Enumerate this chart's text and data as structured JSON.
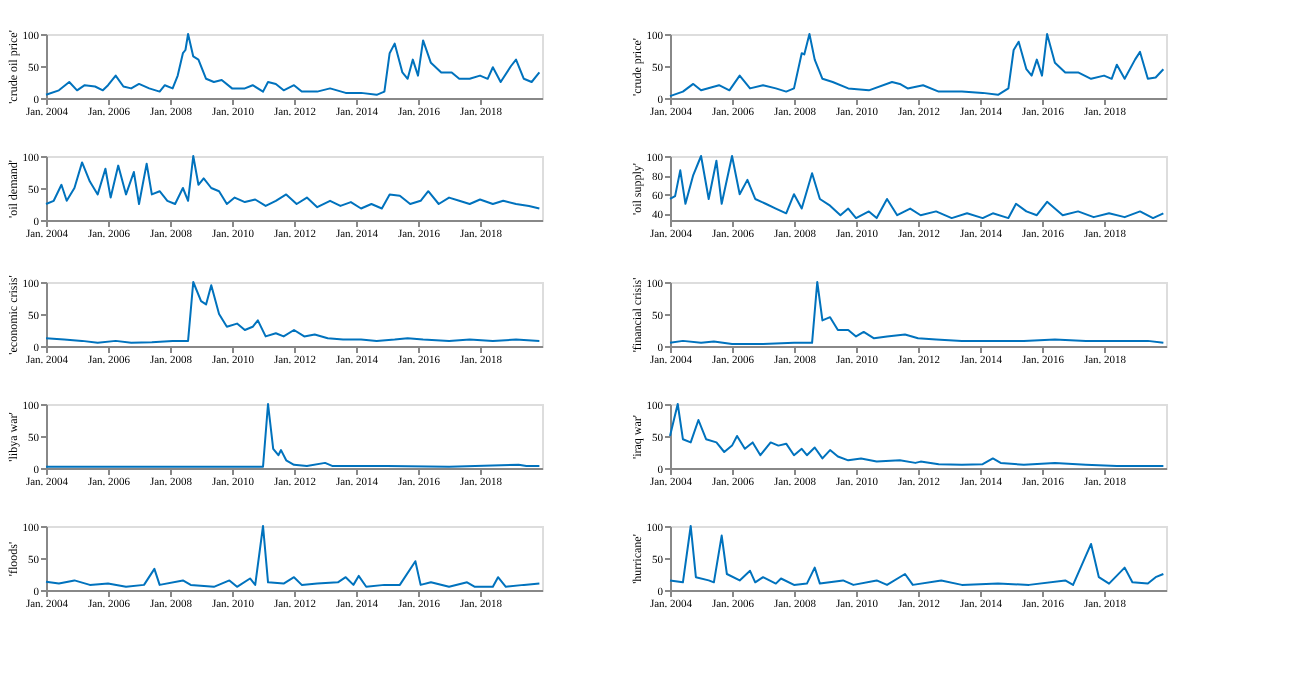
{
  "chart_data": [
    {
      "type": "line",
      "ylabel": "'crude oil price'",
      "color": "#0072bd",
      "grid": false,
      "xlim": [
        "2004-01",
        "2020-01"
      ],
      "ylim": [
        0,
        100
      ],
      "yticks": [
        0,
        50,
        100
      ],
      "xticks": [
        {
          "value": "2004-01",
          "label": "Jan. 2004"
        },
        {
          "value": "2006-01",
          "label": "Jan. 2006"
        },
        {
          "value": "2008-01",
          "label": "Jan. 2008"
        },
        {
          "value": "2010-01",
          "label": "Jan. 2010"
        },
        {
          "value": "2012-01",
          "label": "Jan. 2012"
        },
        {
          "value": "2014-01",
          "label": "Jan. 2014"
        },
        {
          "value": "2016-01",
          "label": "Jan. 2016"
        },
        {
          "value": "2018-01",
          "label": "Jan. 2018"
        }
      ],
      "x": [
        "2004-01",
        "2004-06",
        "2004-10",
        "2005-01",
        "2005-04",
        "2005-08",
        "2005-11",
        "2006-01",
        "2006-04",
        "2006-07",
        "2006-10",
        "2007-01",
        "2007-05",
        "2007-09",
        "2007-11",
        "2008-02",
        "2008-04",
        "2008-06",
        "2008-07",
        "2008-08",
        "2008-10",
        "2008-12",
        "2009-03",
        "2009-06",
        "2009-09",
        "2010-01",
        "2010-06",
        "2010-09",
        "2011-01",
        "2011-03",
        "2011-06",
        "2011-09",
        "2012-01",
        "2012-04",
        "2012-10",
        "2013-03",
        "2013-09",
        "2014-03",
        "2014-09",
        "2014-12",
        "2015-02",
        "2015-04",
        "2015-07",
        "2015-09",
        "2015-11",
        "2016-01",
        "2016-03",
        "2016-06",
        "2016-10",
        "2017-02",
        "2017-05",
        "2017-09",
        "2018-01",
        "2018-04",
        "2018-06",
        "2018-09",
        "2019-01",
        "2019-03",
        "2019-06",
        "2019-09",
        "2019-12"
      ],
      "values": [
        5,
        12,
        25,
        12,
        20,
        18,
        12,
        20,
        35,
        18,
        15,
        22,
        15,
        10,
        20,
        15,
        35,
        70,
        75,
        100,
        65,
        60,
        30,
        25,
        28,
        15,
        15,
        20,
        10,
        25,
        22,
        12,
        20,
        10,
        10,
        15,
        8,
        8,
        5,
        10,
        70,
        85,
        40,
        30,
        60,
        35,
        90,
        55,
        40,
        40,
        30,
        30,
        35,
        30,
        48,
        25,
        50,
        60,
        30,
        25,
        40
      ]
    },
    {
      "type": "line",
      "ylabel": "'crude price'",
      "color": "#0072bd",
      "grid": false,
      "xlim": [
        "2004-01",
        "2020-01"
      ],
      "ylim": [
        0,
        100
      ],
      "yticks": [
        0,
        50,
        100
      ],
      "xticks": [
        {
          "value": "2004-01",
          "label": "Jan. 2004"
        },
        {
          "value": "2006-01",
          "label": "Jan. 2006"
        },
        {
          "value": "2008-01",
          "label": "Jan. 2008"
        },
        {
          "value": "2010-01",
          "label": "Jan. 2010"
        },
        {
          "value": "2012-01",
          "label": "Jan. 2012"
        },
        {
          "value": "2014-01",
          "label": "Jan. 2014"
        },
        {
          "value": "2016-01",
          "label": "Jan. 2016"
        },
        {
          "value": "2018-01",
          "label": "Jan. 2018"
        }
      ],
      "x": [
        "2004-01",
        "2004-06",
        "2004-10",
        "2005-01",
        "2005-08",
        "2005-12",
        "2006-04",
        "2006-08",
        "2007-01",
        "2007-06",
        "2007-10",
        "2008-01",
        "2008-04",
        "2008-05",
        "2008-07",
        "2008-09",
        "2008-12",
        "2009-04",
        "2009-10",
        "2010-06",
        "2011-03",
        "2011-06",
        "2011-09",
        "2012-03",
        "2012-09",
        "2013-06",
        "2014-02",
        "2014-08",
        "2014-12",
        "2015-02",
        "2015-04",
        "2015-07",
        "2015-09",
        "2015-11",
        "2016-01",
        "2016-03",
        "2016-06",
        "2016-10",
        "2017-03",
        "2017-08",
        "2018-01",
        "2018-04",
        "2018-06",
        "2018-09",
        "2019-01",
        "2019-03",
        "2019-06",
        "2019-09",
        "2019-12"
      ],
      "values": [
        3,
        10,
        22,
        12,
        20,
        12,
        35,
        15,
        20,
        15,
        10,
        15,
        70,
        68,
        100,
        60,
        30,
        25,
        15,
        12,
        25,
        22,
        15,
        20,
        10,
        10,
        8,
        5,
        15,
        75,
        88,
        45,
        35,
        60,
        35,
        100,
        55,
        40,
        40,
        30,
        35,
        30,
        52,
        30,
        60,
        72,
        30,
        32,
        45
      ]
    },
    {
      "type": "line",
      "ylabel": "'oil demand'",
      "color": "#0072bd",
      "grid": false,
      "xlim": [
        "2004-01",
        "2020-01"
      ],
      "ylim": [
        0,
        100
      ],
      "yticks": [
        0,
        50,
        100
      ],
      "xticks": [
        {
          "value": "2004-01",
          "label": "Jan. 2004"
        },
        {
          "value": "2006-01",
          "label": "Jan. 2006"
        },
        {
          "value": "2008-01",
          "label": "Jan. 2008"
        },
        {
          "value": "2010-01",
          "label": "Jan. 2010"
        },
        {
          "value": "2012-01",
          "label": "Jan. 2012"
        },
        {
          "value": "2014-01",
          "label": "Jan. 2014"
        },
        {
          "value": "2016-01",
          "label": "Jan. 2016"
        },
        {
          "value": "2018-01",
          "label": "Jan. 2018"
        }
      ],
      "x": [
        "2004-01",
        "2004-04",
        "2004-07",
        "2004-09",
        "2004-12",
        "2005-03",
        "2005-06",
        "2005-09",
        "2005-12",
        "2006-02",
        "2006-05",
        "2006-08",
        "2006-11",
        "2007-01",
        "2007-04",
        "2007-06",
        "2007-09",
        "2007-12",
        "2008-03",
        "2008-06",
        "2008-08",
        "2008-10",
        "2008-12",
        "2009-02",
        "2009-05",
        "2009-08",
        "2009-11",
        "2010-02",
        "2010-06",
        "2010-10",
        "2011-02",
        "2011-06",
        "2011-10",
        "2012-02",
        "2012-06",
        "2012-10",
        "2013-03",
        "2013-07",
        "2013-11",
        "2014-03",
        "2014-07",
        "2014-11",
        "2015-02",
        "2015-06",
        "2015-10",
        "2016-02",
        "2016-05",
        "2016-09",
        "2017-01",
        "2017-05",
        "2017-09",
        "2018-01",
        "2018-06",
        "2018-10",
        "2019-03",
        "2019-08",
        "2019-12"
      ],
      "values": [
        25,
        30,
        55,
        30,
        50,
        90,
        60,
        40,
        80,
        35,
        85,
        40,
        75,
        25,
        88,
        40,
        45,
        30,
        25,
        50,
        30,
        100,
        55,
        65,
        50,
        45,
        25,
        35,
        28,
        32,
        22,
        30,
        40,
        25,
        35,
        20,
        30,
        22,
        28,
        18,
        25,
        18,
        40,
        38,
        25,
        30,
        45,
        25,
        35,
        30,
        25,
        32,
        25,
        30,
        25,
        22,
        18
      ]
    },
    {
      "type": "line",
      "ylabel": "'oil supply'",
      "color": "#0072bd",
      "grid": false,
      "xlim": [
        "2004-01",
        "2020-01"
      ],
      "ylim": [
        33,
        100
      ],
      "yticks": [
        40,
        60,
        80,
        100
      ],
      "xticks": [
        {
          "value": "2004-01",
          "label": "Jan. 2004"
        },
        {
          "value": "2006-01",
          "label": "Jan. 2006"
        },
        {
          "value": "2008-01",
          "label": "Jan. 2008"
        },
        {
          "value": "2010-01",
          "label": "Jan. 2010"
        },
        {
          "value": "2012-01",
          "label": "Jan. 2012"
        },
        {
          "value": "2014-01",
          "label": "Jan. 2014"
        },
        {
          "value": "2016-01",
          "label": "Jan. 2016"
        },
        {
          "value": "2018-01",
          "label": "Jan. 2018"
        }
      ],
      "x": [
        "2004-01",
        "2004-03",
        "2004-05",
        "2004-07",
        "2004-10",
        "2005-01",
        "2005-04",
        "2005-07",
        "2005-09",
        "2006-01",
        "2006-04",
        "2006-07",
        "2006-10",
        "2007-02",
        "2007-06",
        "2007-10",
        "2008-01",
        "2008-04",
        "2008-08",
        "2008-11",
        "2009-03",
        "2009-07",
        "2009-10",
        "2010-01",
        "2010-06",
        "2010-09",
        "2011-01",
        "2011-05",
        "2011-10",
        "2012-02",
        "2012-08",
        "2013-02",
        "2013-08",
        "2014-02",
        "2014-06",
        "2014-12",
        "2015-03",
        "2015-07",
        "2015-11",
        "2016-03",
        "2016-09",
        "2017-03",
        "2017-09",
        "2018-03",
        "2018-09",
        "2019-03",
        "2019-08",
        "2019-12"
      ],
      "values": [
        55,
        58,
        85,
        50,
        80,
        100,
        55,
        95,
        50,
        100,
        60,
        75,
        55,
        50,
        45,
        40,
        60,
        45,
        82,
        55,
        48,
        38,
        45,
        35,
        42,
        35,
        55,
        38,
        45,
        38,
        42,
        35,
        40,
        35,
        40,
        35,
        50,
        42,
        38,
        52,
        38,
        42,
        36,
        40,
        36,
        42,
        35,
        40
      ]
    },
    {
      "type": "line",
      "ylabel": "'economic crisis'",
      "color": "#0072bd",
      "grid": false,
      "xlim": [
        "2004-01",
        "2020-01"
      ],
      "ylim": [
        0,
        100
      ],
      "yticks": [
        0,
        50,
        100
      ],
      "xticks": [
        {
          "value": "2004-01",
          "label": "Jan. 2004"
        },
        {
          "value": "2006-01",
          "label": "Jan. 2006"
        },
        {
          "value": "2008-01",
          "label": "Jan. 2008"
        },
        {
          "value": "2010-01",
          "label": "Jan. 2010"
        },
        {
          "value": "2012-01",
          "label": "Jan. 2012"
        },
        {
          "value": "2014-01",
          "label": "Jan. 2014"
        },
        {
          "value": "2016-01",
          "label": "Jan. 2016"
        },
        {
          "value": "2018-01",
          "label": "Jan. 2018"
        }
      ],
      "x": [
        "2004-01",
        "2004-08",
        "2005-03",
        "2005-09",
        "2006-04",
        "2006-10",
        "2007-06",
        "2008-02",
        "2008-08",
        "2008-10",
        "2009-01",
        "2009-03",
        "2009-05",
        "2009-08",
        "2009-11",
        "2010-03",
        "2010-06",
        "2010-09",
        "2010-11",
        "2011-02",
        "2011-06",
        "2011-09",
        "2012-01",
        "2012-05",
        "2012-09",
        "2013-02",
        "2013-08",
        "2014-03",
        "2014-09",
        "2015-04",
        "2015-09",
        "2016-03",
        "2017-01",
        "2017-09",
        "2018-06",
        "2019-03",
        "2019-12"
      ],
      "values": [
        12,
        10,
        8,
        5,
        8,
        5,
        6,
        8,
        8,
        100,
        70,
        65,
        95,
        50,
        30,
        35,
        25,
        30,
        40,
        15,
        20,
        15,
        25,
        15,
        18,
        12,
        10,
        10,
        8,
        10,
        12,
        10,
        8,
        10,
        8,
        10,
        8
      ]
    },
    {
      "type": "line",
      "ylabel": "'financial crisis'",
      "color": "#0072bd",
      "grid": false,
      "xlim": [
        "2004-01",
        "2020-01"
      ],
      "ylim": [
        0,
        100
      ],
      "yticks": [
        0,
        50,
        100
      ],
      "xticks": [
        {
          "value": "2004-01",
          "label": "Jan. 2004"
        },
        {
          "value": "2006-01",
          "label": "Jan. 2006"
        },
        {
          "value": "2008-01",
          "label": "Jan. 2008"
        },
        {
          "value": "2010-01",
          "label": "Jan. 2010"
        },
        {
          "value": "2012-01",
          "label": "Jan. 2012"
        },
        {
          "value": "2014-01",
          "label": "Jan. 2014"
        },
        {
          "value": "2016-01",
          "label": "Jan. 2016"
        },
        {
          "value": "2018-01",
          "label": "Jan. 2018"
        }
      ],
      "x": [
        "2004-01",
        "2004-06",
        "2005-01",
        "2005-06",
        "2006-01",
        "2007-01",
        "2008-01",
        "2008-08",
        "2008-10",
        "2008-12",
        "2009-03",
        "2009-06",
        "2009-10",
        "2010-01",
        "2010-04",
        "2010-08",
        "2011-01",
        "2011-08",
        "2012-01",
        "2012-08",
        "2013-06",
        "2014-06",
        "2015-06",
        "2016-06",
        "2017-06",
        "2018-06",
        "2019-06",
        "2019-12"
      ],
      "values": [
        5,
        8,
        5,
        7,
        3,
        3,
        5,
        5,
        100,
        40,
        45,
        25,
        25,
        15,
        22,
        12,
        15,
        18,
        12,
        10,
        8,
        8,
        8,
        10,
        8,
        8,
        8,
        5
      ]
    },
    {
      "type": "line",
      "ylabel": "'libya war'",
      "color": "#0072bd",
      "grid": false,
      "xlim": [
        "2004-01",
        "2020-01"
      ],
      "ylim": [
        0,
        100
      ],
      "yticks": [
        0,
        50,
        100
      ],
      "xticks": [
        {
          "value": "2004-01",
          "label": "Jan. 2004"
        },
        {
          "value": "2006-01",
          "label": "Jan. 2006"
        },
        {
          "value": "2008-01",
          "label": "Jan. 2008"
        },
        {
          "value": "2010-01",
          "label": "Jan. 2010"
        },
        {
          "value": "2012-01",
          "label": "Jan. 2012"
        },
        {
          "value": "2014-01",
          "label": "Jan. 2014"
        },
        {
          "value": "2016-01",
          "label": "Jan. 2016"
        },
        {
          "value": "2018-01",
          "label": "Jan. 2018"
        }
      ],
      "x": [
        "2004-01",
        "2006-01",
        "2008-01",
        "2010-01",
        "2011-01",
        "2011-03",
        "2011-05",
        "2011-07",
        "2011-08",
        "2011-10",
        "2012-01",
        "2012-06",
        "2013-01",
        "2013-04",
        "2015-01",
        "2017-01",
        "2019-04",
        "2019-07",
        "2019-12"
      ],
      "values": [
        2,
        2,
        2,
        2,
        2,
        100,
        30,
        20,
        28,
        12,
        5,
        3,
        8,
        3,
        3,
        2,
        5,
        3,
        3
      ]
    },
    {
      "type": "line",
      "ylabel": "'iraq war'",
      "color": "#0072bd",
      "grid": false,
      "xlim": [
        "2004-01",
        "2020-01"
      ],
      "ylim": [
        0,
        100
      ],
      "yticks": [
        0,
        50,
        100
      ],
      "xticks": [
        {
          "value": "2004-01",
          "label": "Jan. 2004"
        },
        {
          "value": "2006-01",
          "label": "Jan. 2006"
        },
        {
          "value": "2008-01",
          "label": "Jan. 2008"
        },
        {
          "value": "2010-01",
          "label": "Jan. 2010"
        },
        {
          "value": "2012-01",
          "label": "Jan. 2012"
        },
        {
          "value": "2014-01",
          "label": "Jan. 2014"
        },
        {
          "value": "2016-01",
          "label": "Jan. 2016"
        },
        {
          "value": "2018-01",
          "label": "Jan. 2018"
        }
      ],
      "x": [
        "2004-01",
        "2004-04",
        "2004-06",
        "2004-09",
        "2004-12",
        "2005-03",
        "2005-07",
        "2005-10",
        "2006-01",
        "2006-03",
        "2006-06",
        "2006-09",
        "2006-12",
        "2007-04",
        "2007-07",
        "2007-10",
        "2008-01",
        "2008-04",
        "2008-06",
        "2008-09",
        "2008-12",
        "2009-03",
        "2009-06",
        "2009-10",
        "2010-03",
        "2010-09",
        "2011-06",
        "2011-12",
        "2012-02",
        "2012-09",
        "2013-06",
        "2014-02",
        "2014-06",
        "2014-09",
        "2015-06",
        "2016-06",
        "2017-06",
        "2018-06",
        "2019-06",
        "2019-12"
      ],
      "values": [
        50,
        100,
        45,
        40,
        75,
        45,
        40,
        25,
        35,
        50,
        30,
        40,
        20,
        40,
        35,
        38,
        20,
        30,
        20,
        32,
        15,
        28,
        18,
        12,
        15,
        10,
        12,
        8,
        10,
        6,
        5,
        6,
        15,
        8,
        5,
        8,
        5,
        3,
        3,
        3
      ]
    },
    {
      "type": "line",
      "ylabel": "'floods'",
      "color": "#0072bd",
      "grid": false,
      "xlim": [
        "2004-01",
        "2020-01"
      ],
      "ylim": [
        0,
        100
      ],
      "yticks": [
        0,
        50,
        100
      ],
      "xticks": [
        {
          "value": "2004-01",
          "label": "Jan. 2004"
        },
        {
          "value": "2006-01",
          "label": "Jan. 2006"
        },
        {
          "value": "2008-01",
          "label": "Jan. 2008"
        },
        {
          "value": "2010-01",
          "label": "Jan. 2010"
        },
        {
          "value": "2012-01",
          "label": "Jan. 2012"
        },
        {
          "value": "2014-01",
          "label": "Jan. 2014"
        },
        {
          "value": "2016-01",
          "label": "Jan. 2016"
        },
        {
          "value": "2018-01",
          "label": "Jan. 2018"
        }
      ],
      "x": [
        "2004-01",
        "2004-06",
        "2004-12",
        "2005-06",
        "2006-01",
        "2006-08",
        "2007-03",
        "2007-07",
        "2007-09",
        "2008-06",
        "2008-09",
        "2009-06",
        "2009-12",
        "2010-03",
        "2010-08",
        "2010-10",
        "2011-01",
        "2011-03",
        "2011-09",
        "2012-01",
        "2012-04",
        "2012-10",
        "2013-06",
        "2013-09",
        "2013-12",
        "2014-02",
        "2014-05",
        "2014-12",
        "2015-06",
        "2015-12",
        "2016-02",
        "2016-06",
        "2017-01",
        "2017-08",
        "2017-11",
        "2018-06",
        "2018-08",
        "2018-11",
        "2019-06",
        "2019-12"
      ],
      "values": [
        13,
        10,
        15,
        8,
        10,
        5,
        8,
        33,
        8,
        15,
        8,
        5,
        15,
        5,
        18,
        8,
        100,
        12,
        10,
        20,
        8,
        10,
        12,
        20,
        8,
        22,
        5,
        8,
        8,
        45,
        8,
        12,
        5,
        12,
        5,
        5,
        20,
        5,
        8,
        10
      ]
    },
    {
      "type": "line",
      "ylabel": "'hurricane'",
      "color": "#0072bd",
      "grid": false,
      "xlim": [
        "2004-01",
        "2020-01"
      ],
      "ylim": [
        0,
        100
      ],
      "yticks": [
        0,
        50,
        100
      ],
      "xticks": [
        {
          "value": "2004-01",
          "label": "Jan. 2004"
        },
        {
          "value": "2006-01",
          "label": "Jan. 2006"
        },
        {
          "value": "2008-01",
          "label": "Jan. 2008"
        },
        {
          "value": "2010-01",
          "label": "Jan. 2010"
        },
        {
          "value": "2012-01",
          "label": "Jan. 2012"
        },
        {
          "value": "2014-01",
          "label": "Jan. 2014"
        },
        {
          "value": "2016-01",
          "label": "Jan. 2016"
        },
        {
          "value": "2018-01",
          "label": "Jan. 2018"
        }
      ],
      "x": [
        "2004-01",
        "2004-06",
        "2004-09",
        "2004-11",
        "2005-04",
        "2005-06",
        "2005-09",
        "2005-11",
        "2006-04",
        "2006-08",
        "2006-10",
        "2007-01",
        "2007-06",
        "2007-08",
        "2008-01",
        "2008-06",
        "2008-09",
        "2008-11",
        "2009-08",
        "2009-12",
        "2010-09",
        "2011-01",
        "2011-08",
        "2011-11",
        "2012-10",
        "2013-06",
        "2014-08",
        "2015-08",
        "2016-10",
        "2017-01",
        "2017-08",
        "2017-11",
        "2018-03",
        "2018-09",
        "2018-12",
        "2019-06",
        "2019-09",
        "2019-12"
      ],
      "values": [
        15,
        12,
        100,
        20,
        15,
        12,
        85,
        25,
        15,
        30,
        12,
        20,
        10,
        18,
        8,
        10,
        35,
        10,
        15,
        8,
        15,
        8,
        25,
        8,
        15,
        8,
        10,
        8,
        15,
        8,
        72,
        20,
        10,
        35,
        12,
        10,
        20,
        25
      ]
    }
  ]
}
